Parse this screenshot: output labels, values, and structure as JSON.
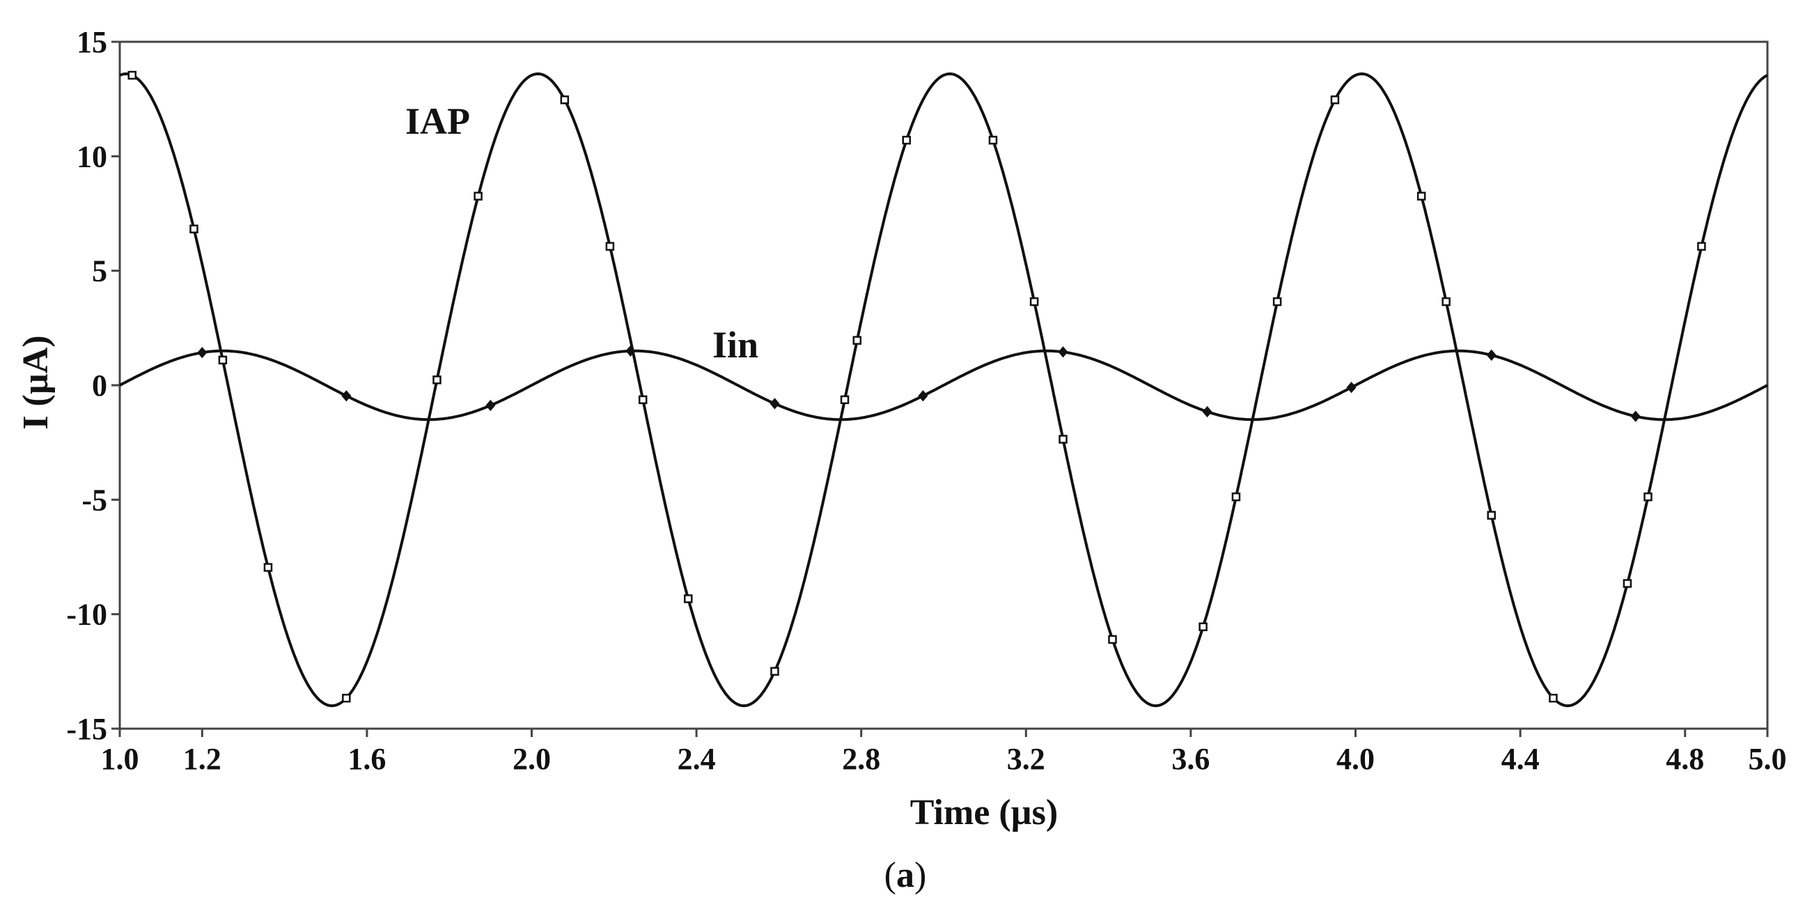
{
  "chart_data": {
    "type": "line",
    "xlabel": "Time (µs)",
    "ylabel": "I (µA)",
    "xlim": [
      1.0,
      5.0
    ],
    "ylim": [
      -15,
      15
    ],
    "x_ticks": [
      1.0,
      1.2,
      1.6,
      2.0,
      2.4,
      2.8,
      3.2,
      3.6,
      4.0,
      4.4,
      4.8,
      5.0
    ],
    "x_tick_labels": [
      "1.0",
      "1.2",
      "1.6",
      "2.0",
      "2.4",
      "2.8",
      "3.2",
      "3.6",
      "4.0",
      "4.4",
      "4.8",
      "5.0"
    ],
    "y_ticks": [
      15,
      10,
      5,
      0,
      -5,
      -10,
      -15
    ],
    "y_tick_labels": [
      "15",
      "10",
      "5",
      "0",
      "-5",
      "-10",
      "-15"
    ],
    "grid": false,
    "series": [
      {
        "name": "IAP",
        "shape": "cosine",
        "amplitude": 13.8,
        "offset": -0.2,
        "period": 1.0,
        "peak_at": 1.015,
        "marker": "square",
        "markers_x": [
          1.03,
          1.18,
          1.25,
          1.36,
          1.55,
          1.77,
          1.87,
          2.08,
          2.19,
          2.27,
          2.38,
          2.59,
          2.76,
          2.79,
          2.91,
          3.12,
          3.22,
          3.29,
          3.41,
          3.63,
          3.71,
          3.81,
          3.95,
          4.16,
          4.22,
          4.33,
          4.48,
          4.66,
          4.71,
          4.84
        ]
      },
      {
        "name": "Iin",
        "shape": "sine",
        "amplitude": 1.5,
        "offset": 0,
        "period": 1.0,
        "zero_at": 1.0,
        "marker": "diamond",
        "markers_x": [
          1.2,
          1.55,
          1.9,
          2.24,
          2.59,
          2.95,
          3.29,
          3.64,
          3.99,
          4.33,
          4.68
        ]
      }
    ],
    "caption_letter": "a"
  }
}
